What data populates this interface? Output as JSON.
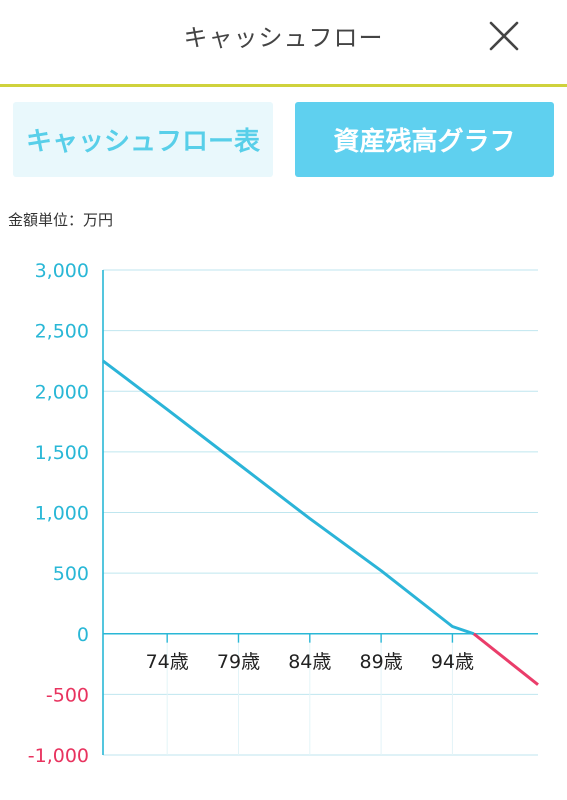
{
  "header": {
    "title": "キャッシュフロー",
    "close_icon": "close-icon"
  },
  "tabs": [
    {
      "label": "キャッシュフロー表",
      "active": false
    },
    {
      "label": "資産残高グラフ",
      "active": true
    }
  ],
  "unit_label": "金額単位：万円",
  "colors": {
    "accent": "#5fd0ef",
    "header_rule": "#cfd23c",
    "positive_axis": "#29b7d6",
    "negative_axis": "#e8335f",
    "line_positive": "#2bb4d8",
    "line_negative": "#ea3d6a"
  },
  "chart_data": {
    "type": "line",
    "title": "",
    "xlabel": "",
    "ylabel": "",
    "ylim": [
      -1000,
      3000
    ],
    "xlim": [
      69.5,
      100
    ],
    "grid": true,
    "y_ticks": [
      {
        "value": 3000,
        "label": "3,000"
      },
      {
        "value": 2500,
        "label": "2,500"
      },
      {
        "value": 2000,
        "label": "2,000"
      },
      {
        "value": 1500,
        "label": "1,500"
      },
      {
        "value": 1000,
        "label": "1,000"
      },
      {
        "value": 500,
        "label": "500"
      },
      {
        "value": 0,
        "label": "0"
      },
      {
        "value": -500,
        "label": "-500"
      },
      {
        "value": -1000,
        "label": "-1,000"
      }
    ],
    "x_ticks": [
      {
        "value": 74,
        "label": "74歳"
      },
      {
        "value": 79,
        "label": "79歳"
      },
      {
        "value": 84,
        "label": "84歳"
      },
      {
        "value": 89,
        "label": "89歳"
      },
      {
        "value": 94,
        "label": "94歳"
      }
    ],
    "series": [
      {
        "x": [
          69.5,
          74,
          79,
          84,
          89,
          94,
          95.5,
          100
        ],
        "y": [
          2250,
          1850,
          1400,
          950,
          520,
          60,
          0,
          -420
        ]
      }
    ]
  }
}
